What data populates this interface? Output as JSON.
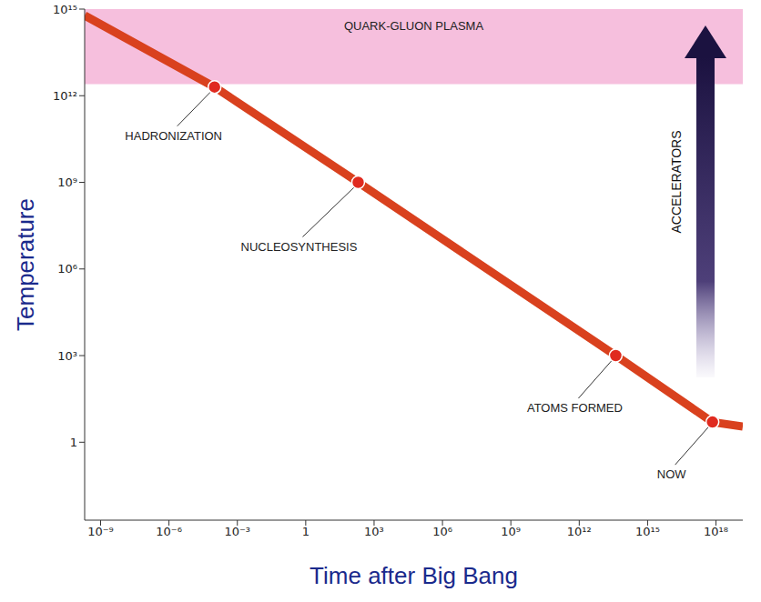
{
  "chart_data": {
    "type": "line",
    "x_label": "Time after Big Bang",
    "y_label": "Temperature",
    "log": true,
    "grid": false,
    "xlim": [
      2e-10,
      1.5e+19
    ],
    "ylim": [
      0.002,
      1000000000000000.0
    ],
    "xticks": [
      {
        "value": 1e-09,
        "label": "10⁻⁹"
      },
      {
        "value": 1e-06,
        "label": "10⁻⁶"
      },
      {
        "value": 0.001,
        "label": "10⁻³"
      },
      1,
      {
        "value": 1000,
        "label": "10³"
      },
      {
        "value": 1000000,
        "label": "10⁶"
      },
      {
        "value": 1000000000,
        "label": "10⁹"
      },
      {
        "value": 1000000000000,
        "label": "10¹²"
      },
      {
        "value": 1000000000000000.0,
        "label": "10¹⁵"
      },
      {
        "value": 1e+18,
        "label": "10¹⁸"
      }
    ],
    "yticks": [
      1,
      {
        "value": 1000,
        "label": "10³"
      },
      {
        "value": 1000000,
        "label": "10⁶"
      },
      {
        "value": 1000000000,
        "label": "10⁹"
      },
      {
        "value": 1000000000000,
        "label": "10¹²"
      },
      {
        "value": 1000000000000000.0,
        "label": "10¹⁵"
      }
    ],
    "x": [
      2e-10,
      0.0001,
      200,
      40000000000000,
      700000000000000000,
      1.5e+19
    ],
    "values": [
      600000000000000,
      2000000000000,
      1000000000,
      1000,
      5,
      3.5
    ],
    "color": "#d9411e",
    "marker": "circle",
    "points": [
      {
        "label": "HADRONIZATION",
        "x": 0.0001,
        "y": 2000000000000
      },
      {
        "label": "NUCLEOSYNTHESIS",
        "x": 200,
        "y": 1000000000
      },
      {
        "label": "ATOMS FORMED",
        "x": 40000000000000,
        "y": 1000
      },
      {
        "label": "NOW",
        "x": 700000000000000000,
        "y": 5
      }
    ],
    "bands": [
      {
        "label": "QUARK-GLUON PLASMA",
        "ylim": [
          2500000000000,
          1000000000000000.0
        ],
        "color": "#f3a9d2"
      }
    ],
    "annotations": [
      {
        "text": "ACCELERATORS"
      }
    ]
  }
}
